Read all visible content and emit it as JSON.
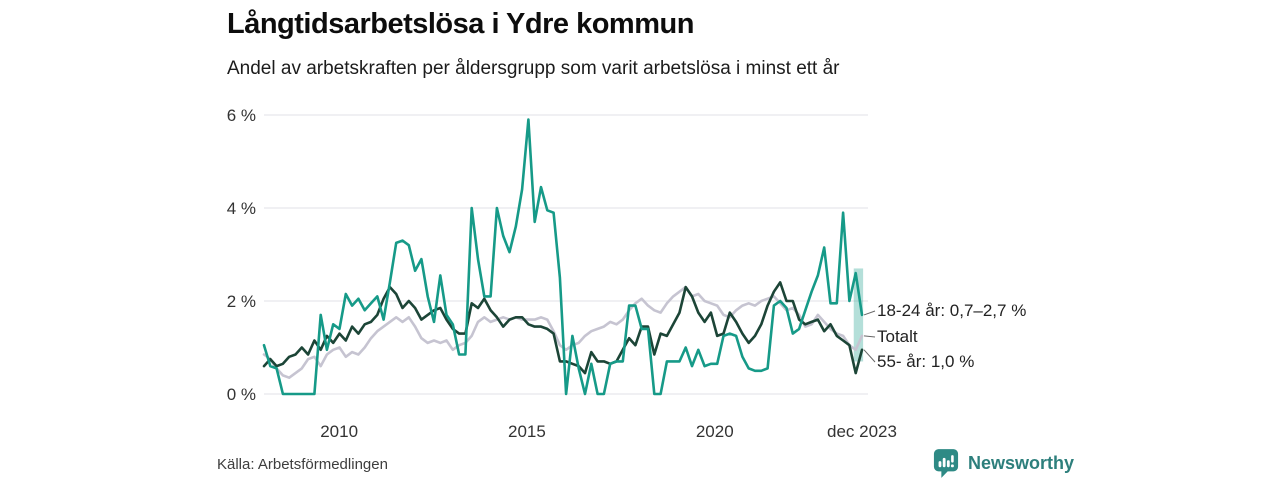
{
  "header": {
    "title": "Långtidsarbetslösa i Ydre kommun",
    "subtitle": "Andel av arbetskraften per åldersgrupp som varit arbetslösa i minst ett år"
  },
  "legend": {
    "items": [
      {
        "label": "18-24 år: 0,7–2,7 %"
      },
      {
        "label": "Totalt"
      },
      {
        "label": "55- år: 1,0 %"
      }
    ]
  },
  "footer": {
    "source": "Källa: Arbetsförmedlingen",
    "brand": "Newsworthy"
  },
  "colors": {
    "series_18_24": "#169a88",
    "series_totalt": "#c6c4d1",
    "series_55": "#1c4537",
    "gridline": "#e8e7ec",
    "axis_text": "#333333",
    "brand_teal": "#2e8a85",
    "band_fill": "rgba(26,158,140,0.33)"
  },
  "chart_data": {
    "type": "line",
    "title": "Långtidsarbetslösa i Ydre kommun",
    "subtitle": "Andel av arbetskraften per åldersgrupp som varit arbetslösa i minst ett år",
    "x_axis": {
      "start": 2008,
      "end": 2023.92,
      "ticks": [
        {
          "label": "2010",
          "value": 2010
        },
        {
          "label": "2015",
          "value": 2015
        },
        {
          "label": "2020",
          "value": 2020
        },
        {
          "label": "dec 2023",
          "value": 2023.92
        }
      ]
    },
    "y_axis": {
      "unit": "%",
      "range": [
        0,
        6.2
      ],
      "grid": true,
      "ticks": [
        {
          "label": "0 %",
          "value": 0
        },
        {
          "label": "2 %",
          "value": 2
        },
        {
          "label": "4 %",
          "value": 4
        },
        {
          "label": "6 %",
          "value": 6
        }
      ]
    },
    "uncertainty_band": {
      "series": "18-24 år",
      "x_from": 2023.7,
      "x_to": 2023.95,
      "v_from": 0.7,
      "v_to": 2.7,
      "color": "rgba(26,158,140,0.33)",
      "label": "0,7–2,7 %"
    },
    "series": [
      {
        "name": "Totalt",
        "color": "#c6c4d1",
        "legend_index": 1,
        "final_value_label": "Totalt",
        "values": [
          0.85,
          0.75,
          0.55,
          0.4,
          0.35,
          0.45,
          0.55,
          0.75,
          0.8,
          0.6,
          0.85,
          0.95,
          1.0,
          0.8,
          0.9,
          0.85,
          1.0,
          1.2,
          1.35,
          1.45,
          1.55,
          1.65,
          1.55,
          1.65,
          1.45,
          1.2,
          1.1,
          1.15,
          1.1,
          1.15,
          0.95,
          1.05,
          1.1,
          1.25,
          1.55,
          1.65,
          1.55,
          1.6,
          1.65,
          1.6,
          1.65,
          1.6,
          1.6,
          1.6,
          1.65,
          1.6,
          1.35,
          1.05,
          0.95,
          1.05,
          1.1,
          1.25,
          1.35,
          1.4,
          1.45,
          1.55,
          1.5,
          1.6,
          1.8,
          1.95,
          2.05,
          1.9,
          1.8,
          1.75,
          1.95,
          2.1,
          2.2,
          2.3,
          2.1,
          2.15,
          2.0,
          1.95,
          1.9,
          1.7,
          1.65,
          1.8,
          1.9,
          1.95,
          1.9,
          2.0,
          2.05,
          2.1,
          1.95,
          1.8,
          1.85,
          1.7,
          1.45,
          1.5,
          1.7,
          1.55,
          1.4,
          1.3,
          1.25,
          1.05,
          0.95,
          1.25
        ]
      },
      {
        "name": "55- år",
        "color": "#1c4537",
        "legend_index": 2,
        "final_value_label": "55- år: 1,0 %",
        "values": [
          0.6,
          0.75,
          0.6,
          0.65,
          0.8,
          0.85,
          1.0,
          0.85,
          1.15,
          0.95,
          1.25,
          1.1,
          1.3,
          1.15,
          1.45,
          1.3,
          1.5,
          1.55,
          1.7,
          2.05,
          2.3,
          2.15,
          1.85,
          2.0,
          1.85,
          1.6,
          1.7,
          1.8,
          1.85,
          1.6,
          1.4,
          1.3,
          1.3,
          1.95,
          1.85,
          2.05,
          1.8,
          1.65,
          1.45,
          1.6,
          1.65,
          1.65,
          1.5,
          1.45,
          1.45,
          1.4,
          1.3,
          0.7,
          0.7,
          0.65,
          0.6,
          0.45,
          0.9,
          0.7,
          0.7,
          0.65,
          0.7,
          0.95,
          1.2,
          1.05,
          1.45,
          1.45,
          0.85,
          1.3,
          1.25,
          1.5,
          1.75,
          2.3,
          2.1,
          1.75,
          1.55,
          1.75,
          1.25,
          1.3,
          1.75,
          1.55,
          1.3,
          1.1,
          1.25,
          1.5,
          1.9,
          2.2,
          2.4,
          2.0,
          2.0,
          1.6,
          1.5,
          1.55,
          1.6,
          1.35,
          1.5,
          1.25,
          1.15,
          1.05,
          0.45,
          0.95
        ]
      },
      {
        "name": "18-24 år",
        "color": "#169a88",
        "legend_index": 0,
        "final_value_label": "18-24 år: 0,7–2,7 %",
        "values": [
          1.05,
          0.6,
          0.55,
          0,
          0,
          0,
          0,
          0,
          0,
          1.7,
          0.95,
          1.5,
          1.4,
          2.15,
          1.9,
          2.05,
          1.8,
          1.95,
          2.1,
          1.6,
          2.4,
          3.25,
          3.3,
          3.2,
          2.65,
          2.9,
          2.1,
          1.55,
          2.55,
          1.7,
          1.5,
          0.85,
          0.85,
          4.0,
          2.9,
          2.1,
          2.1,
          4.0,
          3.4,
          3.05,
          3.6,
          4.4,
          5.9,
          3.7,
          4.45,
          3.95,
          3.9,
          2.5,
          0,
          1.25,
          0.55,
          0,
          0.65,
          0,
          0,
          0.65,
          0.7,
          0.7,
          1.9,
          1.9,
          1.4,
          1.4,
          0,
          0,
          0.7,
          0.7,
          0.7,
          1.0,
          0.6,
          0.95,
          0.6,
          0.65,
          0.65,
          1.25,
          1.3,
          1.25,
          0.8,
          0.55,
          0.5,
          0.5,
          0.55,
          1.9,
          2.0,
          1.85,
          1.3,
          1.4,
          1.8,
          2.2,
          2.55,
          3.15,
          1.95,
          1.95,
          3.9,
          2.0,
          2.6,
          1.7
        ]
      }
    ]
  }
}
